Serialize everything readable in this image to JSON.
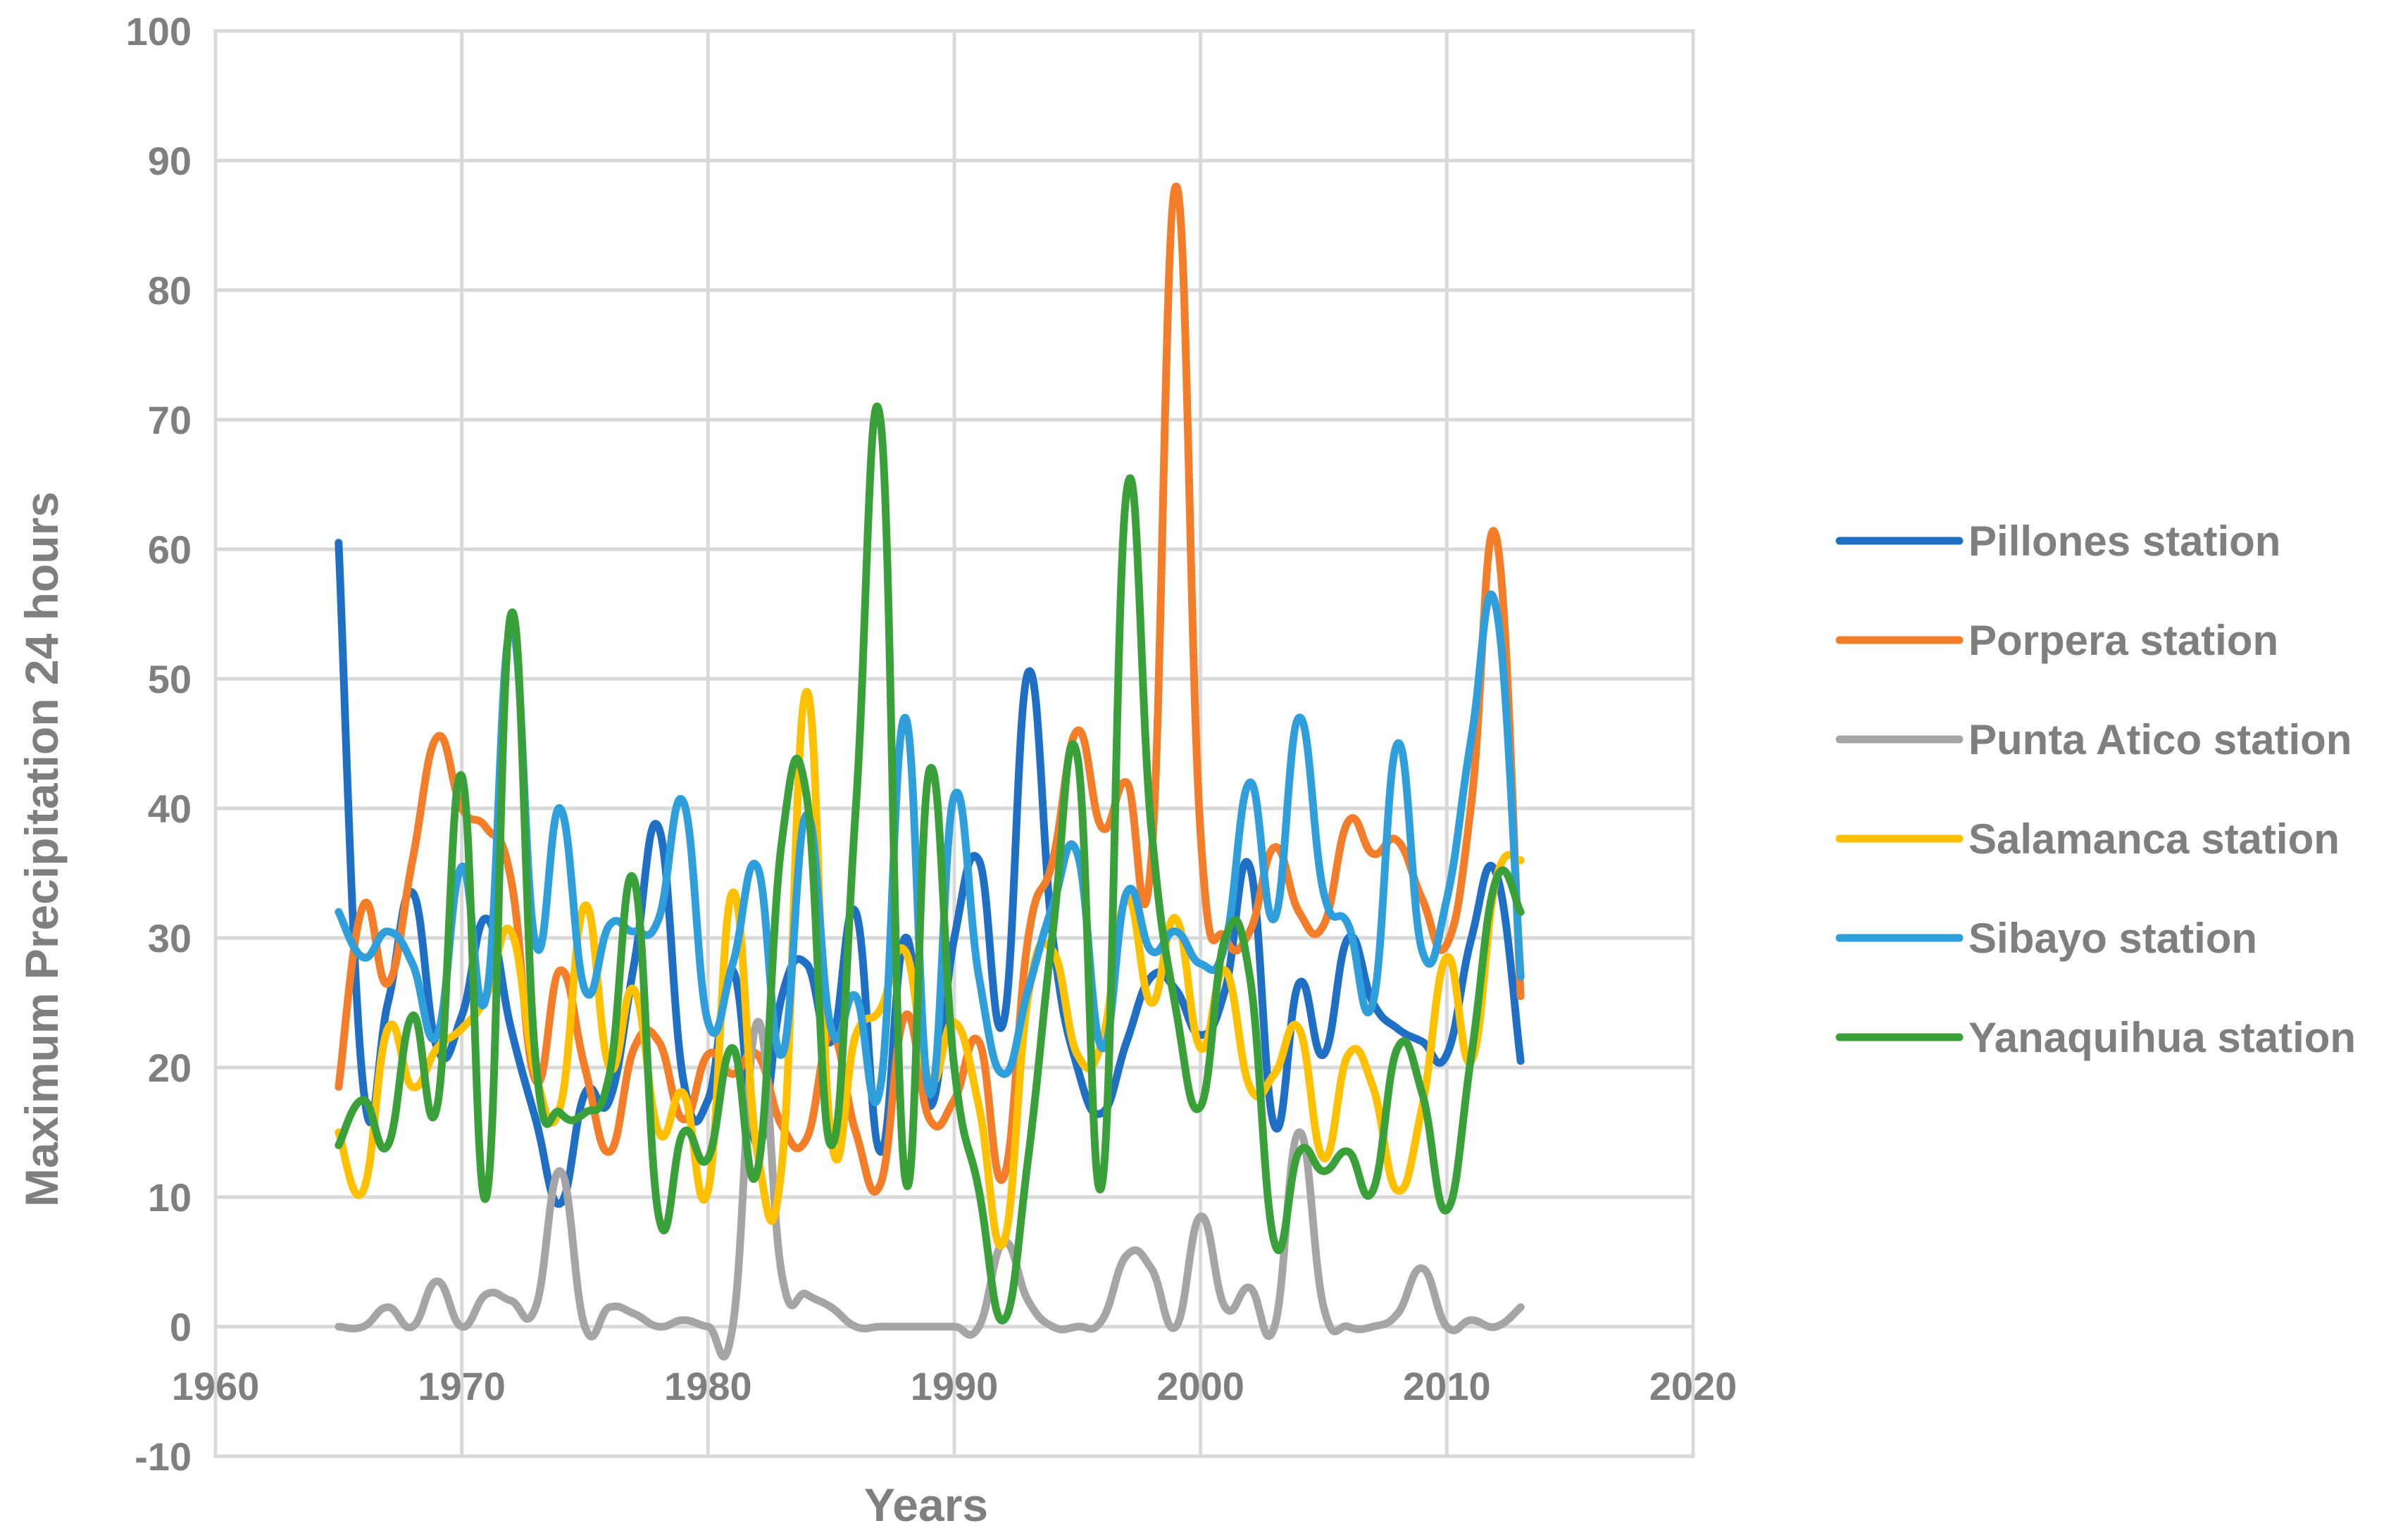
{
  "chart_data": {
    "type": "line",
    "title": "",
    "xlabel": "Years",
    "ylabel": "Maximum Precipitation 24 hours",
    "xlim": [
      1960,
      2020
    ],
    "ylim": [
      -10,
      100
    ],
    "x_ticks": [
      1960,
      1970,
      1980,
      1990,
      2000,
      2010,
      2020
    ],
    "y_ticks": [
      -10,
      0,
      10,
      20,
      30,
      40,
      50,
      60,
      70,
      80,
      90,
      100
    ],
    "grid": true,
    "legend_position": "right",
    "x": [
      1965,
      1966,
      1967,
      1968,
      1969,
      1970,
      1971,
      1972,
      1973,
      1974,
      1975,
      1976,
      1977,
      1978,
      1979,
      1980,
      1981,
      1982,
      1983,
      1984,
      1985,
      1986,
      1987,
      1988,
      1989,
      1990,
      1991,
      1992,
      1993,
      1994,
      1995,
      1996,
      1997,
      1998,
      1999,
      2000,
      2001,
      2002,
      2003,
      2004,
      2005,
      2006,
      2007,
      2008,
      2009,
      2010,
      2011,
      2012,
      2013
    ],
    "series": [
      {
        "name": "Pillones station",
        "color": "#1f6fc5",
        "values": [
          60.5,
          18.5,
          25,
          33.5,
          21.5,
          24,
          31.5,
          23,
          16,
          9.5,
          18,
          17.5,
          28,
          38.5,
          19,
          17.5,
          27.5,
          14,
          25.5,
          28,
          22,
          32,
          13.5,
          30,
          17,
          30,
          36,
          23.5,
          50.5,
          30,
          20,
          16.5,
          22,
          27,
          26,
          22.5,
          26,
          35.5,
          15.5,
          26.5,
          21,
          30,
          25,
          23,
          22,
          21,
          30,
          35,
          20.5
        ]
      },
      {
        "name": "Porpera station",
        "color": "#f47d2a",
        "values": [
          18.5,
          32.5,
          26.5,
          36,
          45.5,
          40,
          38.5,
          34.5,
          19,
          27.5,
          20,
          13.5,
          21.5,
          22,
          16,
          21,
          19.5,
          21,
          15.5,
          14.5,
          22.5,
          15,
          11,
          24,
          16,
          17.5,
          22,
          11.5,
          30,
          36,
          46,
          38.5,
          42,
          36,
          88,
          38,
          30,
          30.5,
          37,
          32,
          31,
          39,
          36.5,
          37.5,
          33,
          29.5,
          40.5,
          61,
          25.5
        ]
      },
      {
        "name": "Punta Atico station",
        "color": "#a5a5a5",
        "values": [
          0,
          0,
          1.5,
          0,
          3.5,
          0,
          2.5,
          2,
          1.5,
          12,
          0,
          1.5,
          1,
          0,
          0.5,
          0,
          0,
          23.5,
          4,
          2.5,
          1.5,
          0,
          0,
          0,
          0,
          0,
          0,
          6.5,
          2,
          0,
          0,
          0.5,
          5.5,
          4.5,
          0,
          8.5,
          1.5,
          3,
          0,
          15,
          1.5,
          0,
          0,
          1,
          4.5,
          0,
          0.5,
          0,
          1.5
        ]
      },
      {
        "name": "Salamanca station",
        "color": "#ffc000",
        "values": [
          15,
          10.5,
          23,
          18.5,
          21.5,
          23,
          25.5,
          30.5,
          19.5,
          17,
          32.5,
          20,
          26,
          15,
          18,
          10.5,
          33.5,
          13.5,
          12.5,
          49,
          14.5,
          22.5,
          24.5,
          29,
          19,
          23.5,
          17,
          6.5,
          25.5,
          29,
          21,
          22,
          33,
          25,
          31.5,
          21.5,
          27.5,
          18.5,
          19.5,
          23,
          13,
          21,
          18.5,
          10.5,
          17,
          28.5,
          20.5,
          34.5,
          36
        ]
      },
      {
        "name": "Sibayo station",
        "color": "#2f9fdb",
        "values": [
          32,
          28.5,
          30.5,
          28,
          22.5,
          35.5,
          25.5,
          54,
          29.5,
          40,
          26,
          31,
          30.5,
          31.5,
          40.5,
          23.5,
          28,
          35.5,
          21,
          39.5,
          23,
          25.5,
          18.5,
          47,
          18,
          41,
          27,
          19.5,
          26,
          32.5,
          36.5,
          21.5,
          33.5,
          29,
          30.5,
          28,
          29.5,
          42,
          31.5,
          47,
          33.5,
          31,
          25,
          45,
          29,
          33,
          45.5,
          55.5,
          27
        ]
      },
      {
        "name": "Yanaquihua station",
        "color": "#3aa13a",
        "values": [
          14,
          17.5,
          14,
          24,
          17,
          42.5,
          10,
          55,
          20.5,
          16.5,
          16.5,
          19.5,
          34.5,
          8.5,
          15,
          13,
          21.5,
          12,
          37.5,
          41,
          14,
          40,
          70,
          11.5,
          43,
          20,
          10.5,
          0.5,
          13,
          30.5,
          44,
          11,
          64.5,
          38.5,
          24.5,
          17,
          30,
          27,
          6.5,
          13.5,
          12,
          13.5,
          10.5,
          21.5,
          18,
          9,
          21,
          34.5,
          32
        ]
      }
    ]
  }
}
